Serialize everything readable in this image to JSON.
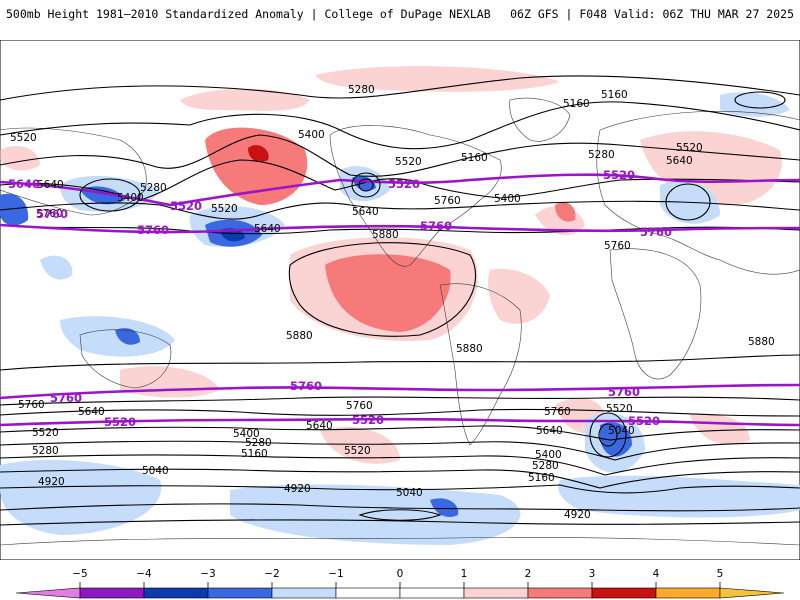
{
  "header": {
    "title_left": "500mb Height 1981–2010 Standardized Anomaly | College of DuPage NEXLAB",
    "title_right": "06Z GFS | F048 Valid: 06Z THU MAR 27 2025"
  },
  "colors": {
    "contour": "#000000",
    "highlight_contour": "#9a14c8",
    "coastline": "#3a3a3a",
    "anom_neg5": "#e27ee0",
    "anom_neg4": "#8a19c0",
    "anom_neg3": "#0c3bb0",
    "anom_neg2": "#3a68e0",
    "anom_neg1": "#c5dcfa",
    "anom_pos1": "#fbd3d3",
    "anom_pos2": "#f67a7a",
    "anom_pos3": "#c81212",
    "anom_pos4": "#fbaa2e",
    "anom_pos5": "#f4c23c"
  },
  "contour_labels": [
    {
      "id": "nh-5280-a",
      "text": "5280"
    },
    {
      "id": "nh-5160-a",
      "text": "5160"
    },
    {
      "id": "nh-5160-b",
      "text": "5160"
    },
    {
      "id": "nh-5520-a",
      "text": "5520"
    },
    {
      "id": "nh-5400-a",
      "text": "5400"
    },
    {
      "id": "nh-5520-b",
      "text": "5520"
    },
    {
      "id": "nh-5160-c",
      "text": "5160"
    },
    {
      "id": "nh-5280-b",
      "text": "5280"
    },
    {
      "id": "nh-5520-c",
      "text": "5520"
    },
    {
      "id": "nh-5640-a",
      "text": "5640"
    },
    {
      "id": "nh-5640-b",
      "text": "5640"
    },
    {
      "id": "nh-5280-c",
      "text": "5280"
    },
    {
      "id": "nh-5400-b",
      "text": "5400"
    },
    {
      "id": "nh-5520-d",
      "text": "5520"
    },
    {
      "id": "nh-5760-a",
      "text": "5760"
    },
    {
      "id": "nh-5640-c",
      "text": "5640"
    },
    {
      "id": "nh-5640-d",
      "text": "5640"
    },
    {
      "id": "nh-5760-b",
      "text": "5760"
    },
    {
      "id": "nh-5400-c",
      "text": "5400"
    },
    {
      "id": "nh-5760-c",
      "text": "5760"
    },
    {
      "id": "nh-5880-a",
      "text": "5880"
    },
    {
      "id": "nh-5880-b",
      "text": "5880"
    },
    {
      "id": "nh-5880-c",
      "text": "5880"
    },
    {
      "id": "nh-5880-d",
      "text": "5880"
    },
    {
      "id": "sh-5760-a",
      "text": "5760"
    },
    {
      "id": "sh-5640-a",
      "text": "5640"
    },
    {
      "id": "sh-5520-a",
      "text": "5520"
    },
    {
      "id": "sh-5280-a",
      "text": "5280"
    },
    {
      "id": "sh-5400-a",
      "text": "5400"
    },
    {
      "id": "sh-5280-b",
      "text": "5280"
    },
    {
      "id": "sh-5160-a",
      "text": "5160"
    },
    {
      "id": "sh-5040-a",
      "text": "5040"
    },
    {
      "id": "sh-4920-a",
      "text": "4920"
    },
    {
      "id": "sh-4920-b",
      "text": "4920"
    },
    {
      "id": "sh-5040-b",
      "text": "5040"
    },
    {
      "id": "sh-5760-b",
      "text": "5760"
    },
    {
      "id": "sh-5640-b",
      "text": "5640"
    },
    {
      "id": "sh-5520-b",
      "text": "5520"
    },
    {
      "id": "sh-5760-c",
      "text": "5760"
    },
    {
      "id": "sh-5640-c",
      "text": "5640"
    },
    {
      "id": "sh-5400-b",
      "text": "5400"
    },
    {
      "id": "sh-5280-c",
      "text": "5280"
    },
    {
      "id": "sh-5160-b",
      "text": "5160"
    },
    {
      "id": "sh-5520-c",
      "text": "5520"
    },
    {
      "id": "sh-5040-c",
      "text": "5040"
    },
    {
      "id": "sh-4920-c",
      "text": "4920"
    }
  ],
  "highlight_labels": [
    {
      "id": "h-5640-w",
      "text": "5640"
    },
    {
      "id": "h-5760-w",
      "text": "5760"
    },
    {
      "id": "h-5520-nwpac",
      "text": "5520"
    },
    {
      "id": "h-5760-pac",
      "text": "5760"
    },
    {
      "id": "h-5520-us",
      "text": "5520"
    },
    {
      "id": "h-5760-us",
      "text": "5760"
    },
    {
      "id": "h-5520-atl",
      "text": "5520"
    },
    {
      "id": "h-5760-eur",
      "text": "5760"
    },
    {
      "id": "h-5760-sh-w",
      "text": "5760"
    },
    {
      "id": "h-5520-sh-w",
      "text": "5520"
    },
    {
      "id": "h-5760-sh-pac",
      "text": "5760"
    },
    {
      "id": "h-5520-sh-pac",
      "text": "5520"
    },
    {
      "id": "h-5760-sh-atl",
      "text": "5760"
    },
    {
      "id": "h-5520-sh-atl",
      "text": "5520"
    }
  ],
  "colorbar": {
    "ticks": [
      "−5",
      "−4",
      "−3",
      "−2",
      "−1",
      "0",
      "1",
      "2",
      "3",
      "4",
      "5"
    ]
  }
}
